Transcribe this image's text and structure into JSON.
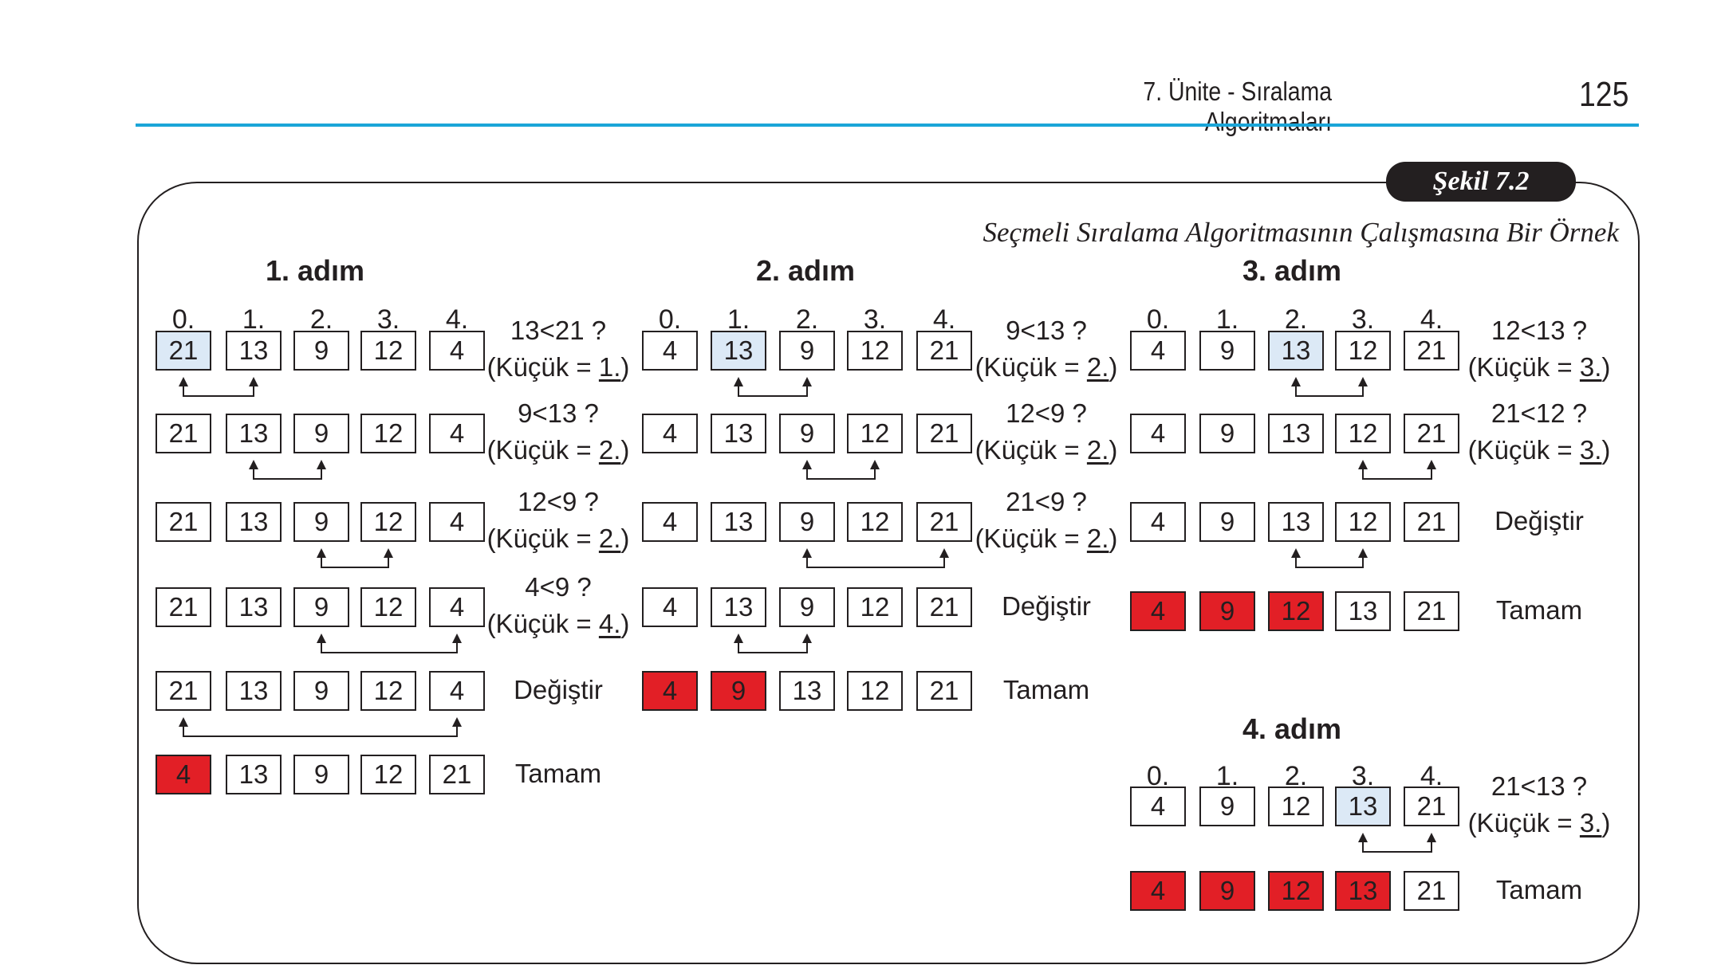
{
  "header": {
    "chapter_title": "7. Ünite - Sıralama Algoritmaları",
    "page_number": "125"
  },
  "figure": {
    "tag": "Şekil 7.2",
    "caption": "Seçmeli Sıralama Algoritmasının Çalışmasına Bir Örnek"
  },
  "steps": [
    {
      "title": "1. adım",
      "indices": [
        "0.",
        "1.",
        "2.",
        "3.",
        "4."
      ],
      "rows": [
        {
          "values": [
            "21",
            "13",
            "9",
            "12",
            "4"
          ],
          "highlight": [
            0
          ],
          "done": [],
          "arrow": [
            0,
            1
          ],
          "note": [
            "13<21 ?",
            "(Küçük = ",
            "1.",
            ")"
          ]
        },
        {
          "values": [
            "21",
            "13",
            "9",
            "12",
            "4"
          ],
          "highlight": [],
          "done": [],
          "arrow": [
            1,
            2
          ],
          "note": [
            "9<13 ?",
            "(Küçük = ",
            "2.",
            ")"
          ]
        },
        {
          "values": [
            "21",
            "13",
            "9",
            "12",
            "4"
          ],
          "highlight": [],
          "done": [],
          "arrow": [
            2,
            3
          ],
          "note": [
            "12<9 ?",
            "(Küçük = ",
            "2.",
            ")"
          ]
        },
        {
          "values": [
            "21",
            "13",
            "9",
            "12",
            "4"
          ],
          "highlight": [],
          "done": [],
          "arrow": [
            2,
            4
          ],
          "note": [
            "4<9 ?",
            "(Küçük = ",
            "4.",
            ")"
          ]
        },
        {
          "values": [
            "21",
            "13",
            "9",
            "12",
            "4"
          ],
          "highlight": [],
          "done": [],
          "arrow": [
            0,
            4
          ],
          "note": [
            "Değiştir"
          ]
        },
        {
          "values": [
            "4",
            "13",
            "9",
            "12",
            "21"
          ],
          "highlight": [],
          "done": [
            0
          ],
          "arrow": null,
          "note": [
            "Tamam"
          ]
        }
      ]
    },
    {
      "title": "2. adım",
      "indices": [
        "0.",
        "1.",
        "2.",
        "3.",
        "4."
      ],
      "rows": [
        {
          "values": [
            "4",
            "13",
            "9",
            "12",
            "21"
          ],
          "highlight": [
            1
          ],
          "done": [],
          "arrow": [
            1,
            2
          ],
          "note": [
            "9<13 ?",
            "(Küçük = ",
            "2.",
            ")"
          ]
        },
        {
          "values": [
            "4",
            "13",
            "9",
            "12",
            "21"
          ],
          "highlight": [],
          "done": [],
          "arrow": [
            2,
            3
          ],
          "note": [
            "12<9 ?",
            "(Küçük = ",
            "2.",
            ")"
          ]
        },
        {
          "values": [
            "4",
            "13",
            "9",
            "12",
            "21"
          ],
          "highlight": [],
          "done": [],
          "arrow": [
            2,
            4
          ],
          "note": [
            "21<9 ?",
            "(Küçük = ",
            "2.",
            ")"
          ]
        },
        {
          "values": [
            "4",
            "13",
            "9",
            "12",
            "21"
          ],
          "highlight": [],
          "done": [],
          "arrow": [
            1,
            2
          ],
          "note": [
            "Değiştir"
          ]
        },
        {
          "values": [
            "4",
            "9",
            "13",
            "12",
            "21"
          ],
          "highlight": [],
          "done": [
            0,
            1
          ],
          "arrow": null,
          "note": [
            "Tamam"
          ]
        }
      ]
    },
    {
      "title": "3. adım",
      "indices": [
        "0.",
        "1.",
        "2.",
        "3.",
        "4."
      ],
      "rows": [
        {
          "values": [
            "4",
            "9",
            "13",
            "12",
            "21"
          ],
          "highlight": [
            2
          ],
          "done": [],
          "arrow": [
            2,
            3
          ],
          "note": [
            "12<13 ?",
            "(Küçük = ",
            "3.",
            ")"
          ]
        },
        {
          "values": [
            "4",
            "9",
            "13",
            "12",
            "21"
          ],
          "highlight": [],
          "done": [],
          "arrow": [
            3,
            4
          ],
          "note": [
            "21<12 ?",
            "(Küçük = ",
            "3.",
            ")"
          ]
        },
        {
          "values": [
            "4",
            "9",
            "13",
            "12",
            "21"
          ],
          "highlight": [],
          "done": [],
          "arrow": [
            2,
            3
          ],
          "note": [
            "Değiştir"
          ]
        },
        {
          "values": [
            "4",
            "9",
            "12",
            "13",
            "21"
          ],
          "highlight": [],
          "done": [
            0,
            1,
            2
          ],
          "arrow": null,
          "note": [
            "Tamam"
          ]
        }
      ]
    },
    {
      "title": "4. adım",
      "indices": [
        "0.",
        "1.",
        "2.",
        "3.",
        "4."
      ],
      "rows": [
        {
          "values": [
            "4",
            "9",
            "12",
            "13",
            "21"
          ],
          "highlight": [
            3
          ],
          "done": [],
          "arrow": [
            3,
            4
          ],
          "note": [
            "21<13 ?",
            "(Küçük = ",
            "3.",
            ")"
          ]
        },
        {
          "values": [
            "4",
            "9",
            "12",
            "13",
            "21"
          ],
          "highlight": [],
          "done": [
            0,
            1,
            2,
            3
          ],
          "arrow": null,
          "note": [
            "Tamam"
          ]
        }
      ]
    }
  ]
}
